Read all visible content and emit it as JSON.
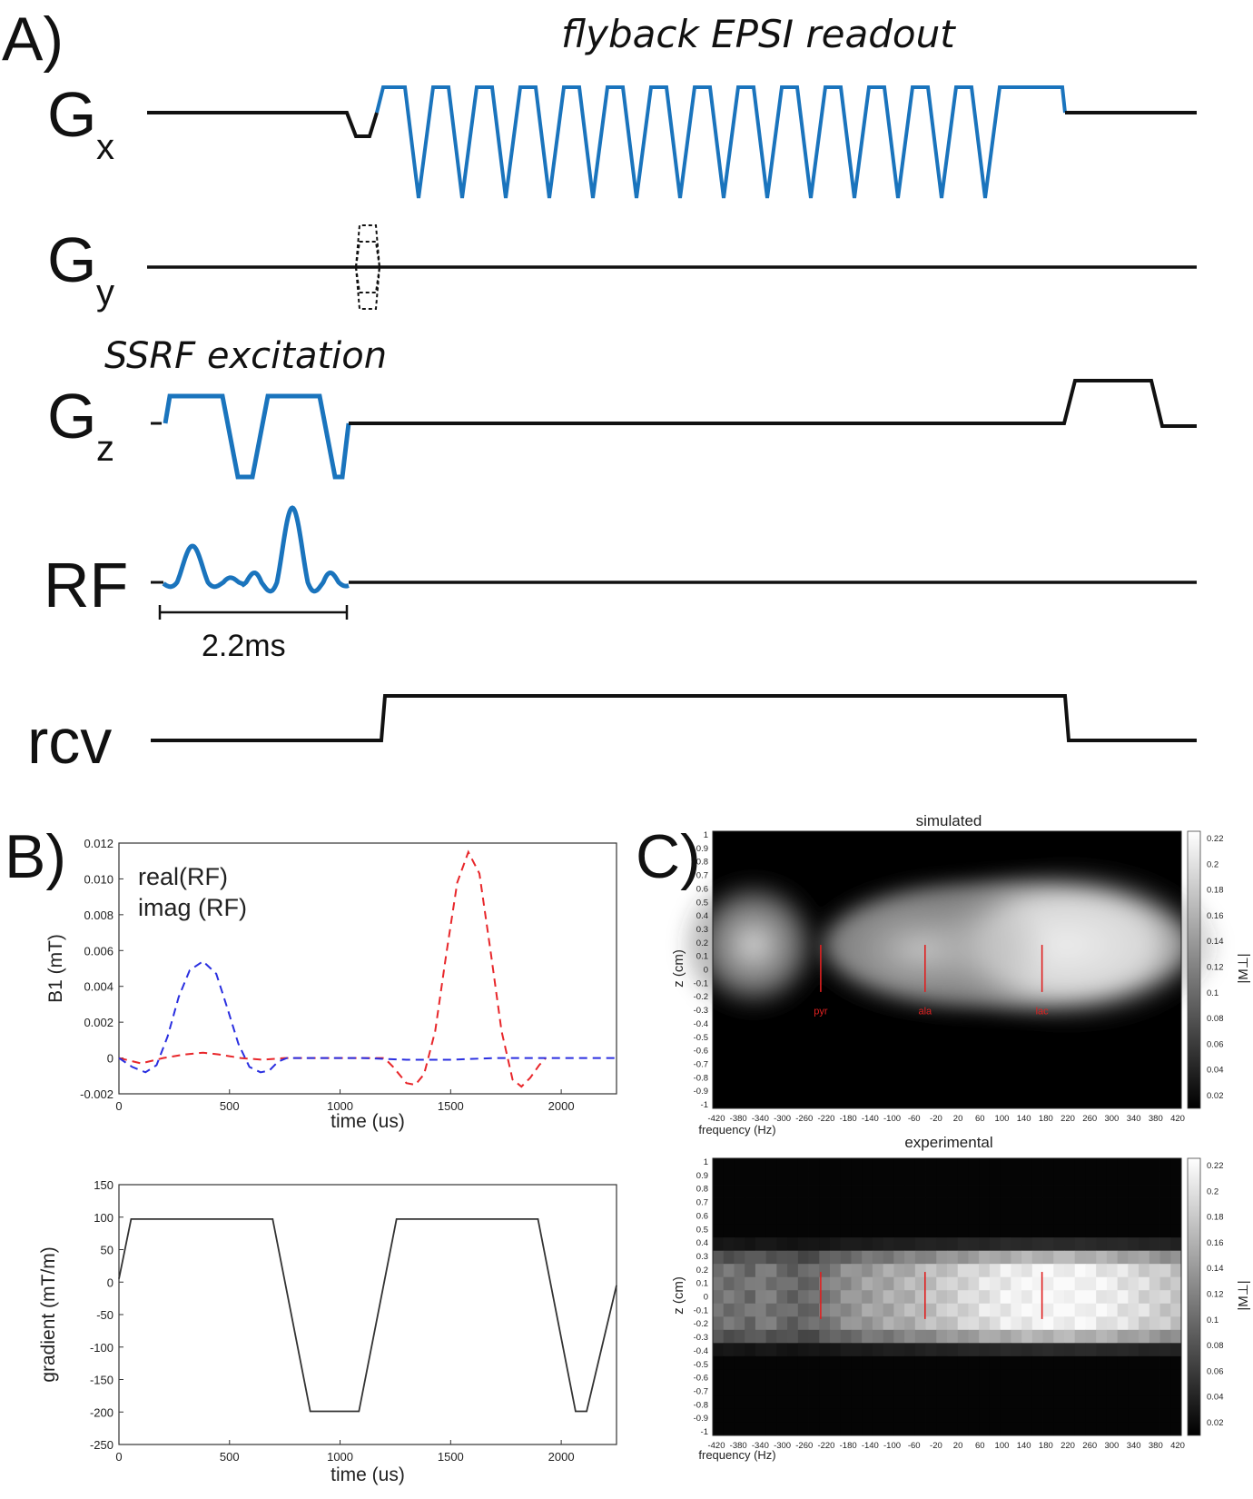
{
  "panel_a": {
    "label": "A)",
    "readout_title": "flyback EPSI readout",
    "excitation_title": "SSRF excitation",
    "duration_label": "2.2ms",
    "channels": {
      "gx": {
        "base": "G",
        "sub": "x"
      },
      "gy": {
        "base": "G",
        "sub": "y"
      },
      "gz": {
        "base": "G",
        "sub": "z"
      },
      "rf": {
        "base": "RF",
        "sub": ""
      },
      "rcv": {
        "base": "rcv",
        "sub": ""
      }
    },
    "colors": {
      "trace": "#111111",
      "highlight": "#1a74bd"
    }
  },
  "panel_b": {
    "label": "B)",
    "colors": {
      "real": "#e8262a",
      "imag": "#2a2fe0",
      "gradient": "#333333"
    },
    "chart_data": [
      {
        "type": "line",
        "title": "",
        "xlabel": "time (us)",
        "ylabel": "B1 (mT)",
        "xlim": [
          0,
          2250
        ],
        "ylim": [
          -0.002,
          0.012
        ],
        "xticks": [
          0,
          500,
          1000,
          1500,
          2000
        ],
        "yticks": [
          -0.002,
          0,
          0.002,
          0.004,
          0.006,
          0.008,
          0.01,
          0.012
        ],
        "ytick_labels": [
          "-0.002",
          "0",
          "0.002",
          "0.004",
          "0.006",
          "0.008",
          "0.010",
          "0.012"
        ],
        "legend": [
          "real(RF)",
          "imag (RF)"
        ],
        "series": [
          {
            "name": "real(RF)",
            "x": [
              0,
              100,
              200,
              300,
              380,
              450,
              550,
              650,
              750,
              900,
              1050,
              1200,
              1240,
              1300,
              1340,
              1380,
              1430,
              1480,
              1530,
              1580,
              1630,
              1680,
              1730,
              1780,
              1820,
              1860,
              1900,
              1930
            ],
            "y": [
              0,
              -0.0003,
              0,
              0.0002,
              0.0003,
              0.0002,
              0,
              -0.0001,
              0,
              0,
              0,
              0,
              -0.0005,
              -0.0014,
              -0.0015,
              -0.0009,
              0.0015,
              0.0058,
              0.0098,
              0.0115,
              0.0103,
              0.006,
              0.0015,
              -0.0012,
              -0.0016,
              -0.0011,
              -0.0004,
              0
            ]
          },
          {
            "name": "imag (RF)",
            "x": [
              0,
              60,
              120,
              170,
              220,
              270,
              320,
              380,
              440,
              490,
              540,
              590,
              640,
              680,
              720,
              760,
              900,
              1100,
              1300,
              1500,
              1700,
              1900,
              2100,
              2250
            ],
            "y": [
              0,
              -0.0005,
              -0.0008,
              -0.0004,
              0.0012,
              0.0034,
              0.0049,
              0.0054,
              0.0047,
              0.0028,
              0.0008,
              -0.0005,
              -0.0008,
              -0.0007,
              -0.0002,
              0,
              0,
              0,
              -0.0001,
              -0.0001,
              0,
              0,
              0,
              0
            ]
          }
        ]
      },
      {
        "type": "line",
        "title": "",
        "xlabel": "time (us)",
        "ylabel": "gradient (mT/m)",
        "xlim": [
          0,
          2250
        ],
        "ylim": [
          -250,
          150
        ],
        "xticks": [
          0,
          500,
          1000,
          1500,
          2000
        ],
        "yticks": [
          -250,
          -200,
          -150,
          -100,
          -50,
          0,
          50,
          100,
          150
        ],
        "series": [
          {
            "name": "gradient",
            "x": [
              0,
              55,
              695,
              865,
              1085,
              1255,
              1895,
              2065,
              2115,
              2250
            ],
            "y": [
              5,
              97,
              97,
              -199,
              -199,
              97,
              97,
              -199,
              -199,
              -5
            ]
          }
        ]
      }
    ]
  },
  "panel_c": {
    "label": "C)",
    "metabolites": [
      "pyr",
      "ala",
      "lac"
    ],
    "marker_color": "#e02020",
    "chart_data": [
      {
        "type": "heatmap",
        "title": "simulated",
        "xlabel": "frequency (Hz)",
        "ylabel": "z (cm)",
        "colorbar_label": "|M⊥|",
        "colorbar_ticks": [
          "0.22",
          "0.2",
          "0.18",
          "0.16",
          "0.14",
          "0.12",
          "0.1",
          "0.08",
          "0.06",
          "0.04",
          "0.02"
        ],
        "xticks": [
          "-420",
          "-380",
          "-340",
          "-300",
          "-260",
          "-220",
          "-180",
          "-140",
          "-100",
          "-60",
          "-20",
          "20",
          "60",
          "100",
          "140",
          "180",
          "220",
          "260",
          "300",
          "340",
          "380",
          "420"
        ],
        "yticks": [
          "1",
          "0.9",
          "0.8",
          "0.7",
          "0.6",
          "0.5",
          "0.4",
          "0.3",
          "0.2",
          "0.1",
          "0",
          "-0.1",
          "-0.2",
          "-0.3",
          "-0.4",
          "-0.5",
          "-0.6",
          "-0.7",
          "-0.8",
          "-0.9",
          "-1"
        ],
        "markers_hz": [
          -230,
          -40,
          173
        ]
      },
      {
        "type": "heatmap",
        "title": "experimental",
        "xlabel": "frequency (Hz)",
        "ylabel": "z (cm)",
        "colorbar_label": "|M⊥|",
        "colorbar_ticks": [
          "0.22",
          "0.2",
          "0.18",
          "0.16",
          "0.14",
          "0.12",
          "0.1",
          "0.08",
          "0.06",
          "0.04",
          "0.02"
        ],
        "xticks": [
          "-420",
          "-380",
          "-340",
          "-300",
          "-260",
          "-220",
          "-180",
          "-140",
          "-100",
          "-60",
          "-20",
          "20",
          "60",
          "100",
          "140",
          "180",
          "220",
          "260",
          "300",
          "340",
          "380",
          "420"
        ],
        "yticks": [
          "1",
          "0.9",
          "0.8",
          "0.7",
          "0.6",
          "0.5",
          "0.4",
          "0.3",
          "0.2",
          "0.1",
          "0",
          "-0.1",
          "-0.2",
          "-0.3",
          "-0.4",
          "-0.5",
          "-0.6",
          "-0.7",
          "-0.8",
          "-0.9",
          "-1"
        ],
        "markers_hz": [
          -230,
          -40,
          173
        ]
      }
    ]
  }
}
